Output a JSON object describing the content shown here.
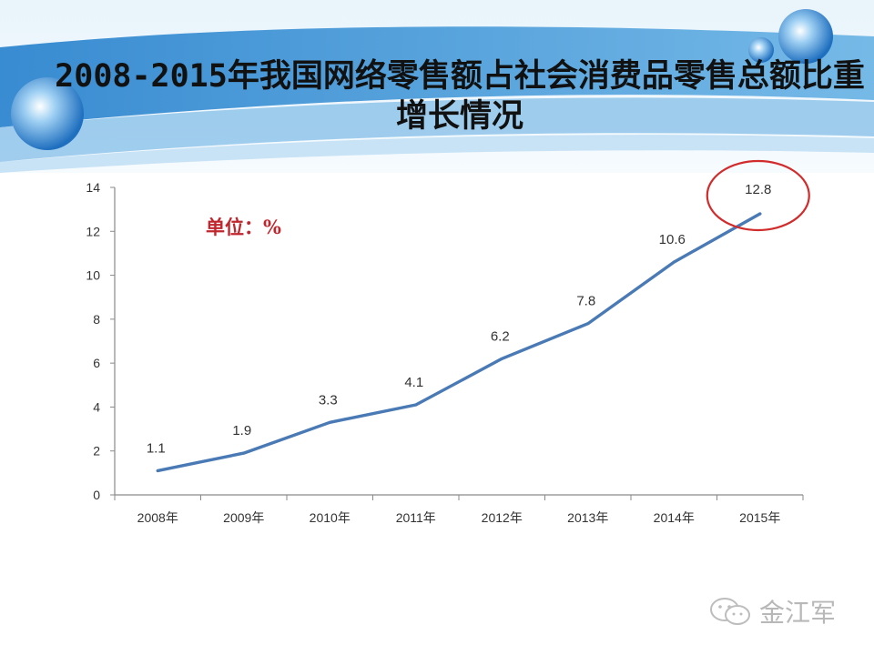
{
  "title": "2008-2015年我国网络零售额占社会消费品零售总额比重增长情况",
  "unit_label": "单位：%",
  "watermark": "金江军",
  "colors": {
    "line": "#4a7ab5",
    "highlight": "#d12b2b",
    "unit": "#c0262d",
    "banner": "#3a8fd0"
  },
  "chart_data": {
    "type": "line",
    "categories": [
      "2008年",
      "2009年",
      "2010年",
      "2011年",
      "2012年",
      "2013年",
      "2014年",
      "2015年"
    ],
    "series": [
      {
        "values": [
          1.1,
          1.9,
          3.3,
          4.1,
          6.2,
          7.8,
          10.6,
          12.8
        ]
      }
    ],
    "data_labels": [
      "1.1",
      "1.9",
      "3.3",
      "4.1",
      "6.2",
      "7.8",
      "10.6",
      "12.8"
    ],
    "yticks": [
      0,
      2,
      4,
      6,
      8,
      10,
      12,
      14
    ],
    "ylim": [
      0,
      14
    ],
    "grid": false,
    "highlight_category": "2015年"
  }
}
